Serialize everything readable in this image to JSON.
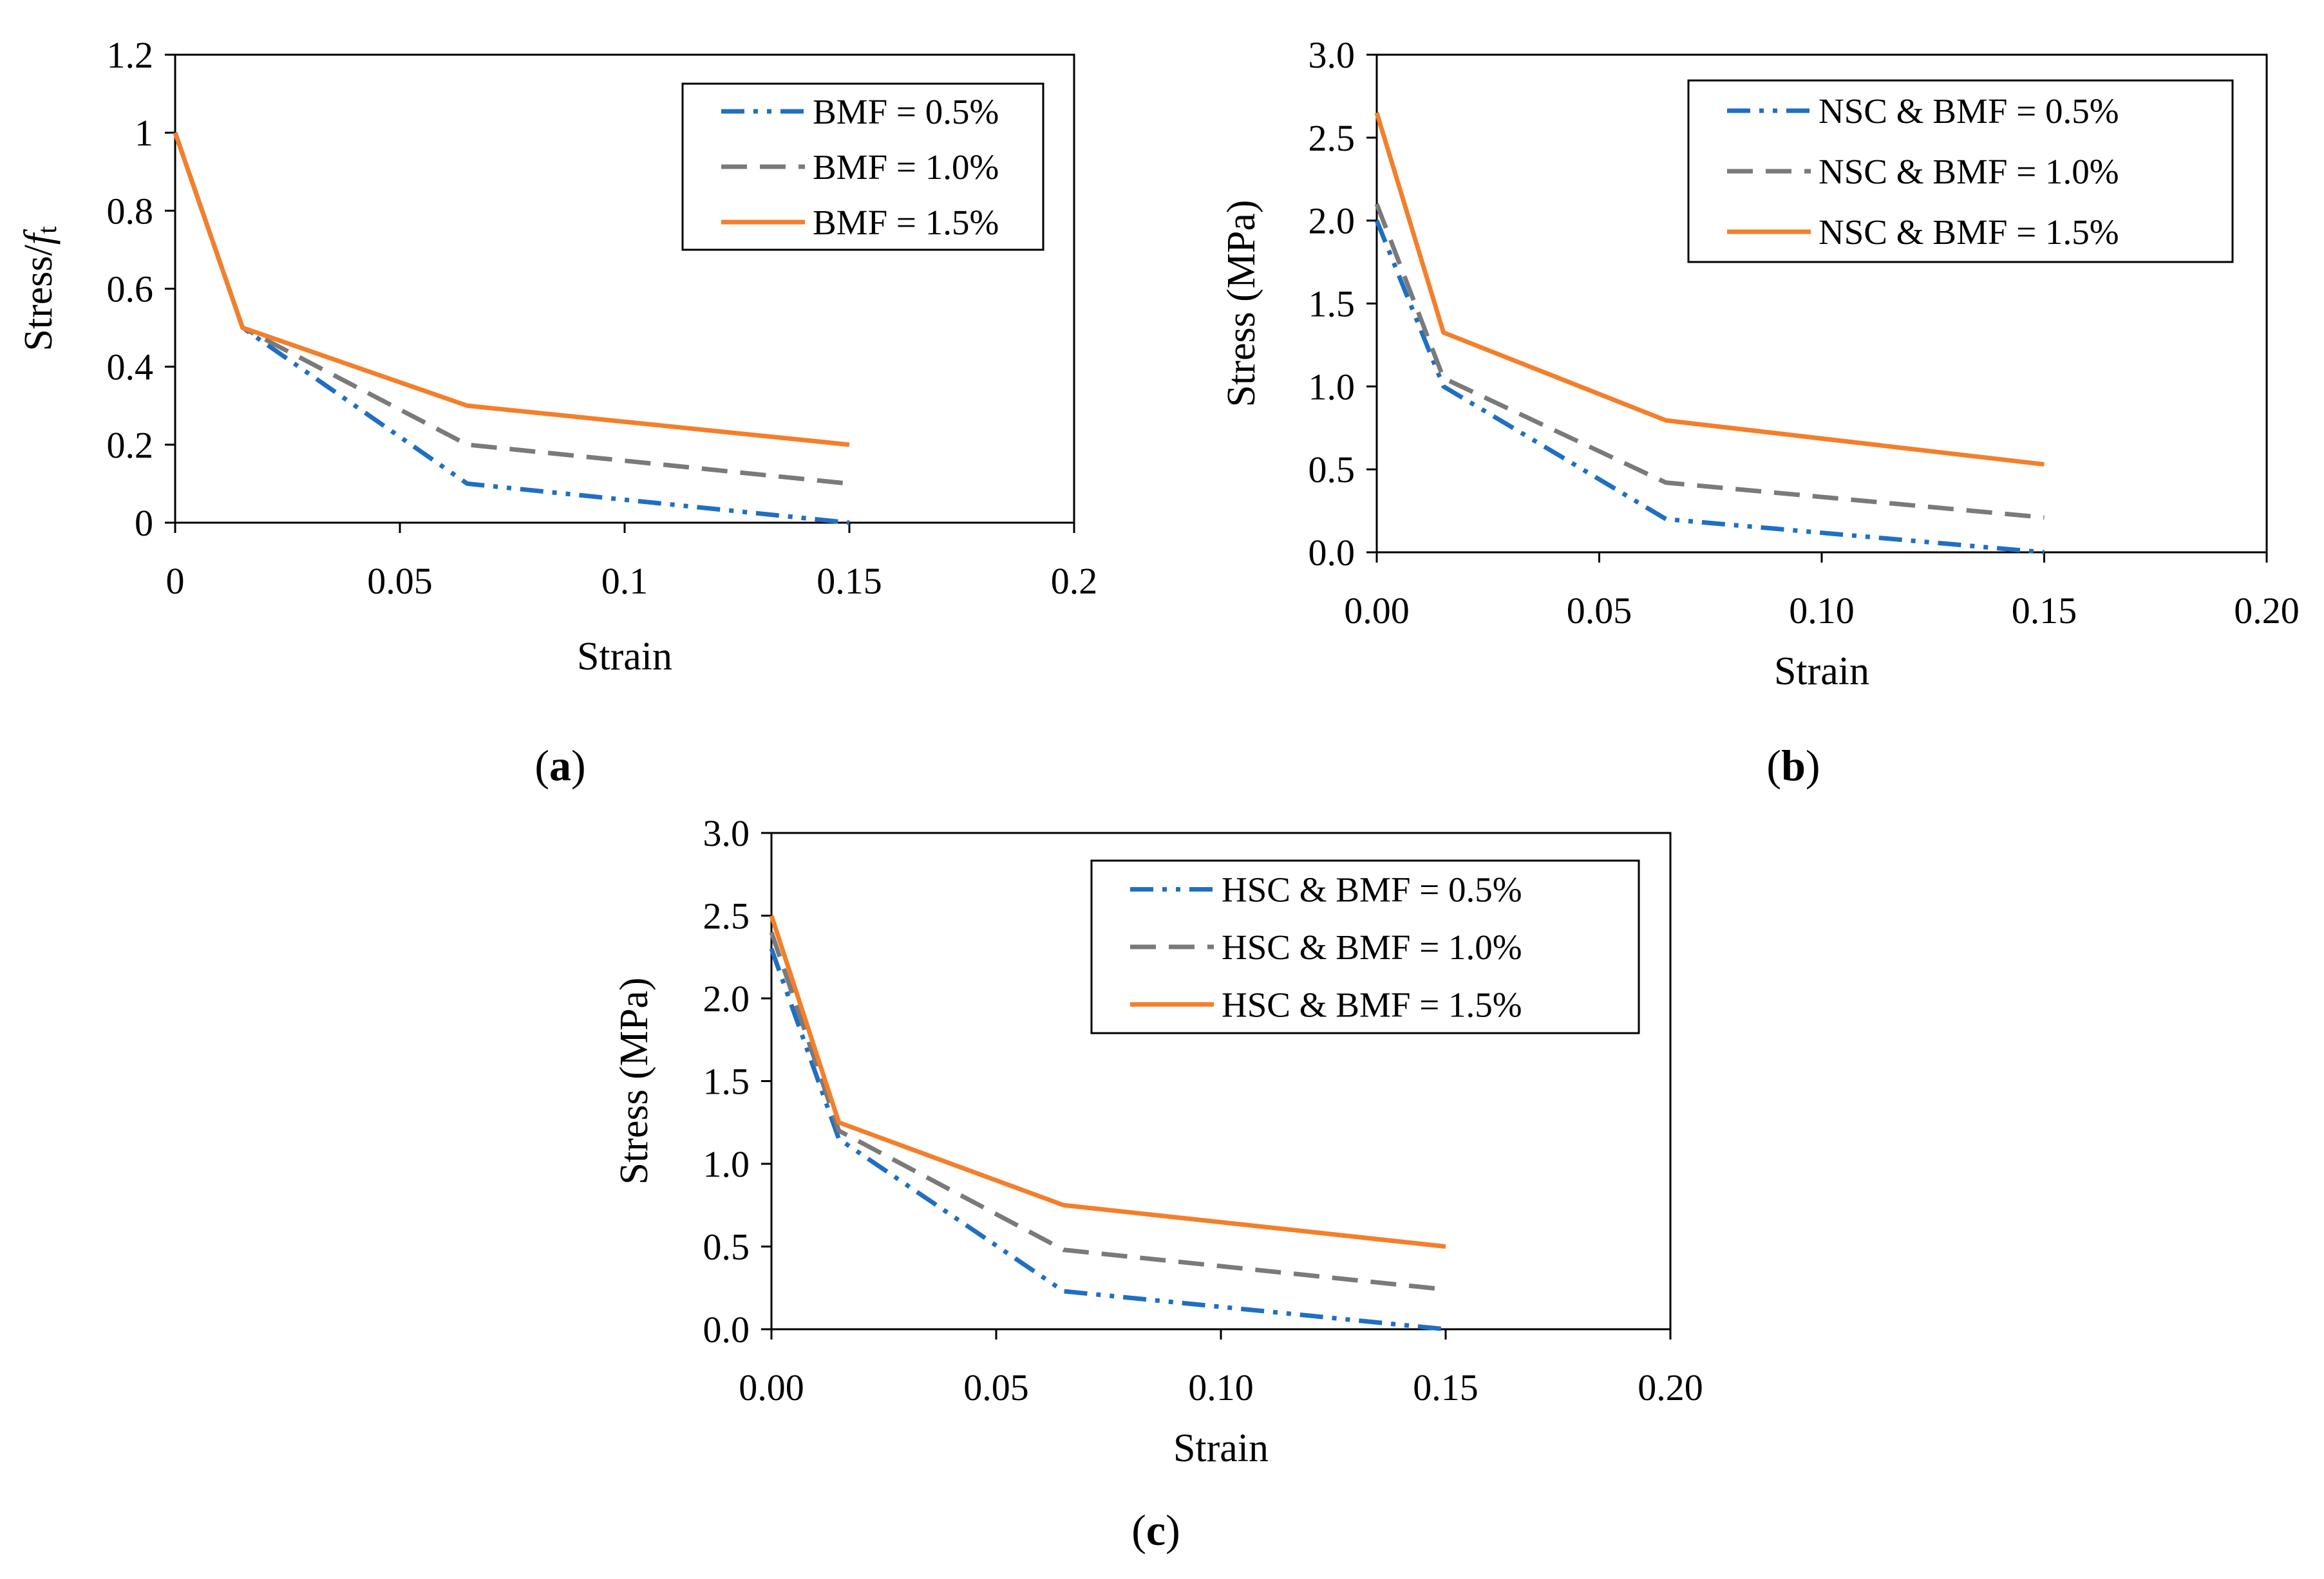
{
  "colors": {
    "blue": "#1f6fc2",
    "gray": "#7a7a7a",
    "orange": "#f37f2b"
  },
  "chart_data": [
    {
      "id": "a",
      "type": "line",
      "caption_letter": "a",
      "xlabel": "Strain",
      "ylabel_main": "Stress/",
      "ylabel_italic": "f",
      "ylabel_sub": "t",
      "xlim": [
        0,
        0.2
      ],
      "ylim": [
        0,
        1.2
      ],
      "xticks": [
        0,
        0.05,
        0.1,
        0.15,
        0.2
      ],
      "xtick_labels": [
        "0",
        "0.05",
        "0.1",
        "0.15",
        "0.2"
      ],
      "yticks": [
        0,
        0.2,
        0.4,
        0.6,
        0.8,
        1,
        1.2
      ],
      "ytick_labels": [
        "0",
        "0.2",
        "0.4",
        "0.6",
        "0.8",
        "1",
        "1.2"
      ],
      "legend_position": "top-right",
      "series": [
        {
          "name": "BMF = 0.5%",
          "style": "dash-dot-dot",
          "color": "#1f6fc2",
          "x": [
            0,
            0.015,
            0.065,
            0.15
          ],
          "y": [
            1.0,
            0.5,
            0.1,
            0.0
          ]
        },
        {
          "name": "BMF = 1.0%",
          "style": "dashed",
          "color": "#7a7a7a",
          "x": [
            0,
            0.015,
            0.065,
            0.15
          ],
          "y": [
            1.0,
            0.5,
            0.2,
            0.1
          ]
        },
        {
          "name": "BMF = 1.5%",
          "style": "solid",
          "color": "#f37f2b",
          "x": [
            0,
            0.015,
            0.065,
            0.15
          ],
          "y": [
            1.0,
            0.5,
            0.3,
            0.2
          ]
        }
      ]
    },
    {
      "id": "b",
      "type": "line",
      "caption_letter": "b",
      "xlabel": "Strain",
      "ylabel": "Stress (MPa)",
      "xlim": [
        0,
        0.2
      ],
      "ylim": [
        0,
        3.0
      ],
      "xticks": [
        0,
        0.05,
        0.1,
        0.15,
        0.2
      ],
      "xtick_labels": [
        "0.00",
        "0.05",
        "0.10",
        "0.15",
        "0.20"
      ],
      "yticks": [
        0,
        0.5,
        1.0,
        1.5,
        2.0,
        2.5,
        3.0
      ],
      "ytick_labels": [
        "0.0",
        "0.5",
        "1.0",
        "1.5",
        "2.0",
        "2.5",
        "3.0"
      ],
      "legend_position": "top-right",
      "series": [
        {
          "name": "NSC & BMF = 0.5%",
          "style": "dash-dot-dot",
          "color": "#1f6fc2",
          "x": [
            0,
            0.015,
            0.065,
            0.15
          ],
          "y": [
            2.0,
            1.0,
            0.2,
            0.0
          ]
        },
        {
          "name": "NSC & BMF = 1.0%",
          "style": "dashed",
          "color": "#7a7a7a",
          "x": [
            0,
            0.015,
            0.065,
            0.15
          ],
          "y": [
            2.1,
            1.05,
            0.42,
            0.21
          ]
        },
        {
          "name": "NSC & BMF = 1.5%",
          "style": "solid",
          "color": "#f37f2b",
          "x": [
            0,
            0.015,
            0.065,
            0.15
          ],
          "y": [
            2.65,
            1.325,
            0.795,
            0.53
          ]
        }
      ]
    },
    {
      "id": "c",
      "type": "line",
      "caption_letter": "c",
      "xlabel": "Strain",
      "ylabel": "Stress (MPa)",
      "xlim": [
        0,
        0.2
      ],
      "ylim": [
        0,
        3.0
      ],
      "xticks": [
        0,
        0.05,
        0.1,
        0.15,
        0.2
      ],
      "xtick_labels": [
        "0.00",
        "0.05",
        "0.10",
        "0.15",
        "0.20"
      ],
      "yticks": [
        0,
        0.5,
        1.0,
        1.5,
        2.0,
        2.5,
        3.0
      ],
      "ytick_labels": [
        "0.0",
        "0.5",
        "1.0",
        "1.5",
        "2.0",
        "2.5",
        "3.0"
      ],
      "legend_position": "top-right",
      "series": [
        {
          "name": "HSC & BMF = 0.5%",
          "style": "dash-dot-dot",
          "color": "#1f6fc2",
          "x": [
            0,
            0.015,
            0.065,
            0.15
          ],
          "y": [
            2.3,
            1.15,
            0.23,
            0.0
          ]
        },
        {
          "name": "HSC & BMF = 1.0%",
          "style": "dashed",
          "color": "#7a7a7a",
          "x": [
            0,
            0.015,
            0.065,
            0.15
          ],
          "y": [
            2.4,
            1.2,
            0.48,
            0.24
          ]
        },
        {
          "name": "HSC & BMF = 1.5%",
          "style": "solid",
          "color": "#f37f2b",
          "x": [
            0,
            0.015,
            0.065,
            0.15
          ],
          "y": [
            2.5,
            1.25,
            0.75,
            0.5
          ]
        }
      ]
    }
  ]
}
